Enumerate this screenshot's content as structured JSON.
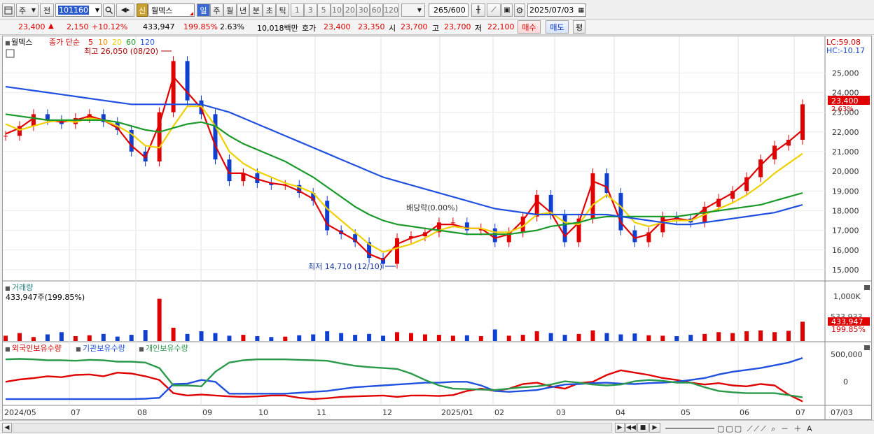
{
  "toolbar": {
    "market": "주",
    "type": "전",
    "code": "101160",
    "shin": "신",
    "name": "월덱스",
    "periods": [
      "일",
      "주",
      "월",
      "년",
      "분",
      "초",
      "틱"
    ],
    "intervals": [
      "1",
      "3",
      "5",
      "10",
      "20",
      "30",
      "60",
      "120"
    ],
    "count": "265",
    "count_max": "/600",
    "date": "2025/07/03"
  },
  "quote": {
    "price": "23,400",
    "change": "2,150",
    "change_pct": "+10.12%",
    "volume": "433,947",
    "volume_ratio": "199.85%",
    "turnover": "2.63%",
    "amount": "10,018백만",
    "bid_label": "호가",
    "ask": "23,400",
    "bid": "23,350",
    "open_label": "시",
    "open": "23,700",
    "high_label": "고",
    "high": "23,700",
    "low_label": "저",
    "low": "22,100",
    "buy_button": "매수",
    "sell_button": "매도",
    "avg_button": "평"
  },
  "legend": {
    "name": "월덱스",
    "series": "종가 단순",
    "ma": [
      "5",
      "10",
      "20",
      "60",
      "120"
    ],
    "ma_colors": [
      "#e00000",
      "#ff8c00",
      "#f0d000",
      "#1a9a2a",
      "#2050e0"
    ],
    "lc": "LC:59.08",
    "hc": "HC:-10.17"
  },
  "annotations": {
    "high": "최고 26,050 (08/20)",
    "low": "최저 14,710 (12/10)",
    "dividend": "배당락(0.00%)"
  },
  "price_tag": {
    "value": "23,400",
    "pct": "2.63%"
  },
  "volume_panel": {
    "title": "거래량",
    "value": "433,947주(199.85%)",
    "tag_value": "433,947",
    "tag_pct": "199.85%",
    "axis_top": "1,000K",
    "axis_mid": "533,933"
  },
  "holding_panel": {
    "series": [
      "외국인보유수량",
      "기관보유수량",
      "개인보유수량"
    ],
    "axis": [
      "500,000",
      "0"
    ]
  },
  "x_labels": [
    "2024/05",
    "07",
    "08",
    "09",
    "10",
    "11",
    "12",
    "2025/01",
    "02",
    "03",
    "04",
    "05",
    "06",
    "07",
    "07/03"
  ],
  "colors": {
    "up": "#e00000",
    "down": "#1040d0"
  },
  "chart_data": [
    {
      "type": "line",
      "title": "",
      "ylabel": "",
      "ylim": [
        14500,
        26500
      ],
      "y_ticks": [
        15000,
        16000,
        17000,
        18000,
        19000,
        20000,
        21000,
        22000,
        23000,
        24000,
        25000
      ],
      "series": [
        {
          "name": "종가",
          "values": [
            21800,
            22300,
            22900,
            22600,
            22400,
            22700,
            22900,
            22500,
            22100,
            21000,
            20500,
            23000,
            25600,
            23600,
            22900,
            20600,
            19500,
            19900,
            19400,
            19300,
            19300,
            18900,
            18500,
            17000,
            16800,
            16400,
            15600,
            15300,
            16600,
            16700,
            16900,
            17400,
            17400,
            17000,
            17100,
            16400,
            16900,
            17700,
            18800,
            17800,
            16400,
            17600,
            19900,
            18900,
            17000,
            16400,
            16900,
            17700,
            17600,
            17400,
            18200,
            18600,
            19000,
            19700,
            20600,
            21300,
            21600,
            23400
          ]
        },
        {
          "name": "5",
          "values": [
            21900,
            22200,
            22700,
            22600,
            22500,
            22600,
            22800,
            22600,
            22200,
            21300,
            20700,
            22400,
            24800,
            24000,
            23200,
            21300,
            19900,
            19900,
            19600,
            19400,
            19300,
            19000,
            18600,
            17300,
            16900,
            16500,
            15800,
            15500,
            16300,
            16600,
            16800,
            17300,
            17300,
            17100,
            17100,
            16600,
            16800,
            17500,
            18500,
            17900,
            16700,
            17400,
            19500,
            19200,
            17400,
            16600,
            16800,
            17500,
            17600,
            17500,
            18100,
            18500,
            18900,
            19500,
            20300,
            21000,
            21500,
            22100
          ]
        },
        {
          "name": "20",
          "values": [
            22400,
            22100,
            22300,
            22500,
            22600,
            22500,
            22700,
            22600,
            22300,
            21900,
            21300,
            21200,
            22300,
            23300,
            23300,
            22300,
            21000,
            20400,
            20000,
            19700,
            19400,
            19200,
            18900,
            18100,
            17500,
            16900,
            16300,
            15900,
            16100,
            16300,
            16600,
            17000,
            17200,
            17100,
            17100,
            16900,
            16900,
            17200,
            17800,
            17900,
            17400,
            17300,
            18300,
            18800,
            18200,
            17400,
            17200,
            17400,
            17500,
            17500,
            17800,
            18100,
            18400,
            18800,
            19300,
            19900,
            20400,
            20900
          ]
        },
        {
          "name": "60",
          "values": [
            22900,
            22800,
            22700,
            22600,
            22600,
            22600,
            22600,
            22600,
            22500,
            22300,
            22100,
            22000,
            22200,
            22400,
            22500,
            22300,
            21800,
            21400,
            21100,
            20800,
            20500,
            20100,
            19700,
            19200,
            18700,
            18200,
            17800,
            17500,
            17300,
            17200,
            17100,
            17000,
            16900,
            16800,
            16800,
            16800,
            16800,
            16900,
            17000,
            17200,
            17300,
            17400,
            17600,
            17700,
            17700,
            17700,
            17700,
            17700,
            17700,
            17800,
            17900,
            18000,
            18100,
            18200,
            18300,
            18500,
            18700,
            18900
          ]
        },
        {
          "name": "120",
          "values": [
            24300,
            24200,
            24100,
            24000,
            23900,
            23800,
            23700,
            23600,
            23500,
            23400,
            23400,
            23400,
            23400,
            23400,
            23400,
            23200,
            23000,
            22700,
            22400,
            22100,
            21800,
            21500,
            21200,
            20900,
            20600,
            20300,
            20000,
            19700,
            19500,
            19300,
            19100,
            18900,
            18700,
            18500,
            18300,
            18100,
            18000,
            17900,
            17800,
            17800,
            17800,
            17800,
            17800,
            17800,
            17700,
            17600,
            17500,
            17400,
            17300,
            17300,
            17400,
            17500,
            17600,
            17700,
            17800,
            17900,
            18100,
            18300
          ]
        }
      ]
    },
    {
      "type": "bar",
      "title": "",
      "ylabel": "",
      "ylim": [
        0,
        1100
      ],
      "values": [
        120,
        180,
        90,
        150,
        200,
        110,
        130,
        160,
        100,
        140,
        250,
        950,
        300,
        160,
        220,
        180,
        120,
        140,
        110,
        90,
        100,
        130,
        150,
        220,
        180,
        140,
        160,
        120,
        200,
        180,
        150,
        140,
        120,
        130,
        110,
        260,
        120,
        140,
        220,
        180,
        140,
        160,
        240,
        180,
        150,
        170,
        130,
        120,
        110,
        140,
        160,
        200,
        180,
        220,
        240,
        200,
        230,
        434
      ]
    },
    {
      "type": "line",
      "title": "",
      "ylabel": "",
      "ylim": [
        -500000,
        600000
      ],
      "series": [
        {
          "name": "외국인보유수량",
          "values": [
            0,
            50000,
            80000,
            120000,
            100000,
            150000,
            160000,
            120000,
            200000,
            180000,
            120000,
            40000,
            -250000,
            -300000,
            -280000,
            -300000,
            -320000,
            -330000,
            -320000,
            -300000,
            -300000,
            -350000,
            -380000,
            -360000,
            -330000,
            -320000,
            -310000,
            -300000,
            -330000,
            -300000,
            -300000,
            -310000,
            -290000,
            -200000,
            -150000,
            -200000,
            -150000,
            -50000,
            -20000,
            -100000,
            -150000,
            -30000,
            0,
            150000,
            250000,
            200000,
            150000,
            80000,
            40000,
            -20000,
            -60000,
            -30000,
            -80000,
            -100000,
            -50000,
            -80000,
            -280000,
            -430000
          ]
        },
        {
          "name": "기관보유수량",
          "values": [
            -380000,
            -380000,
            -380000,
            -380000,
            -380000,
            -380000,
            -380000,
            -380000,
            -380000,
            -380000,
            -370000,
            -350000,
            -50000,
            -40000,
            40000,
            0,
            -260000,
            -260000,
            -260000,
            -260000,
            -260000,
            -240000,
            -220000,
            -200000,
            -160000,
            -120000,
            -100000,
            -80000,
            -60000,
            -40000,
            -20000,
            -20000,
            0,
            0,
            -80000,
            -200000,
            -220000,
            -200000,
            -180000,
            -120000,
            -60000,
            -50000,
            -30000,
            -20000,
            -40000,
            -50000,
            -30000,
            -20000,
            0,
            40000,
            80000,
            160000,
            220000,
            260000,
            300000,
            360000,
            420000,
            520000
          ]
        },
        {
          "name": "개인보유수량",
          "values": [
            490000,
            500000,
            490000,
            470000,
            470000,
            460000,
            480000,
            470000,
            440000,
            440000,
            420000,
            300000,
            -80000,
            -80000,
            -100000,
            220000,
            420000,
            470000,
            490000,
            490000,
            490000,
            480000,
            470000,
            460000,
            400000,
            350000,
            320000,
            300000,
            280000,
            180000,
            40000,
            -80000,
            -150000,
            -160000,
            -170000,
            -180000,
            -150000,
            -120000,
            -100000,
            -60000,
            10000,
            -20000,
            -60000,
            -80000,
            -60000,
            10000,
            40000,
            20000,
            -20000,
            -20000,
            -120000,
            -200000,
            -230000,
            -250000,
            -250000,
            -250000,
            -290000,
            -340000
          ]
        }
      ]
    }
  ]
}
